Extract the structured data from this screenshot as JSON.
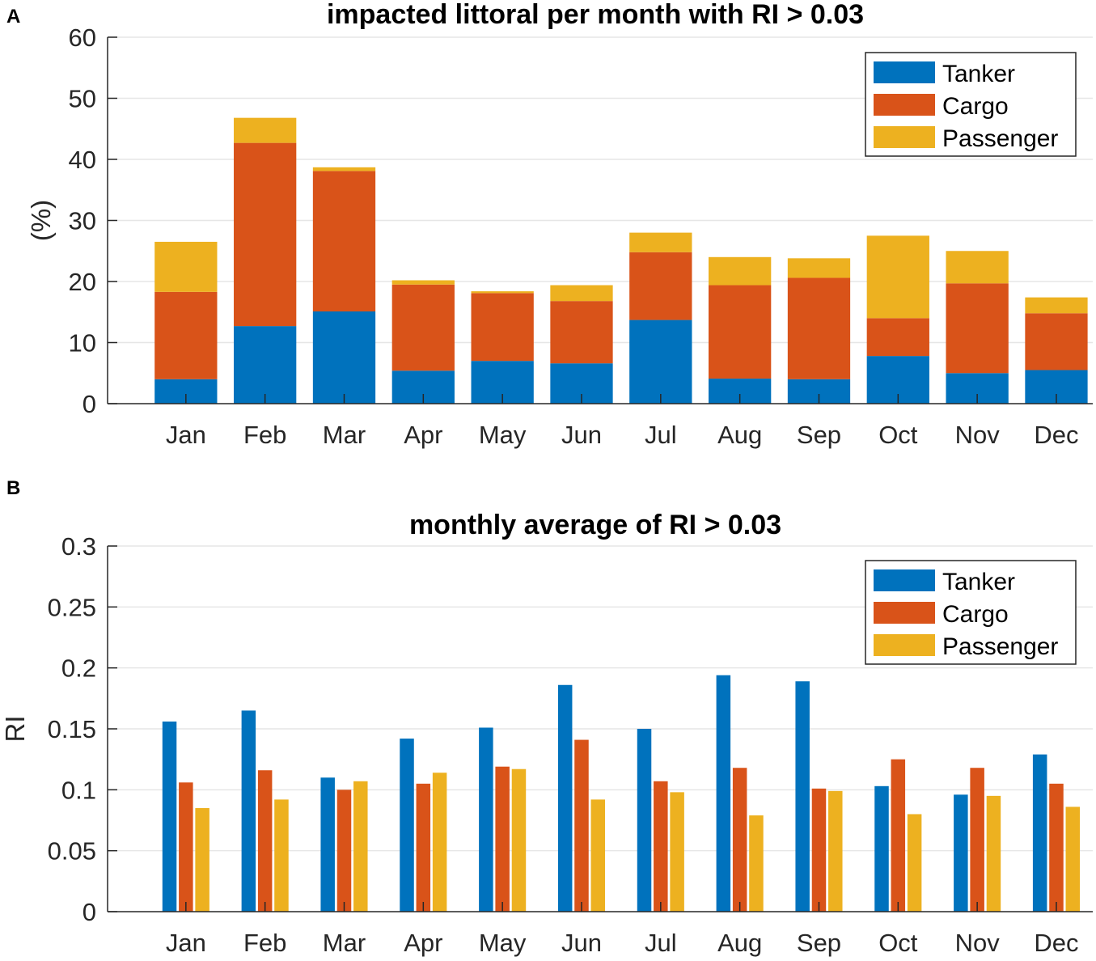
{
  "colors": {
    "tanker": "#0072BD",
    "cargo": "#D95319",
    "passenger": "#EDB120"
  },
  "chart_data": [
    {
      "panel": "A",
      "type": "bar",
      "stacked": true,
      "title": "impacted littoral per month with RI > 0.03",
      "xlabel": "",
      "ylabel": "(%)",
      "ylim": [
        0,
        60
      ],
      "yticks": [
        0,
        10,
        20,
        30,
        40,
        50,
        60
      ],
      "ytick_labels": [
        "0",
        "10",
        "20",
        "30",
        "40",
        "50",
        "60"
      ],
      "grid": true,
      "legend_position": "top-right",
      "categories": [
        "Jan",
        "Feb",
        "Mar",
        "Apr",
        "May",
        "Jun",
        "Jul",
        "Aug",
        "Sep",
        "Oct",
        "Nov",
        "Dec"
      ],
      "series": [
        {
          "name": "Tanker",
          "values": [
            4.0,
            12.7,
            15.1,
            5.4,
            7.0,
            6.6,
            13.7,
            4.1,
            4.0,
            7.8,
            5.0,
            5.5
          ]
        },
        {
          "name": "Cargo",
          "values": [
            14.3,
            30.0,
            23.0,
            14.1,
            11.1,
            10.2,
            11.1,
            15.3,
            16.6,
            6.2,
            14.7,
            9.3
          ]
        },
        {
          "name": "Passenger",
          "values": [
            8.2,
            4.1,
            0.6,
            0.7,
            0.3,
            2.6,
            3.2,
            4.6,
            3.2,
            13.5,
            5.3,
            2.6
          ]
        }
      ]
    },
    {
      "panel": "B",
      "type": "bar",
      "stacked": false,
      "title": "monthly average of RI > 0.03",
      "xlabel": "",
      "ylabel": "RI",
      "ylim": [
        0,
        0.3
      ],
      "yticks": [
        0,
        0.05,
        0.1,
        0.15,
        0.2,
        0.25,
        0.3
      ],
      "ytick_labels": [
        "0",
        "0.05",
        "0.1",
        "0.15",
        "0.2",
        "0.25",
        "0.3"
      ],
      "grid": true,
      "legend_position": "top-right",
      "categories": [
        "Jan",
        "Feb",
        "Mar",
        "Apr",
        "May",
        "Jun",
        "Jul",
        "Aug",
        "Sep",
        "Oct",
        "Nov",
        "Dec"
      ],
      "series": [
        {
          "name": "Tanker",
          "values": [
            0.156,
            0.165,
            0.11,
            0.142,
            0.151,
            0.186,
            0.15,
            0.194,
            0.189,
            0.103,
            0.096,
            0.129
          ]
        },
        {
          "name": "Cargo",
          "values": [
            0.106,
            0.116,
            0.1,
            0.105,
            0.119,
            0.141,
            0.107,
            0.118,
            0.101,
            0.125,
            0.118,
            0.105
          ]
        },
        {
          "name": "Passenger",
          "values": [
            0.085,
            0.092,
            0.107,
            0.114,
            0.117,
            0.092,
            0.098,
            0.079,
            0.099,
            0.08,
            0.095,
            0.086
          ]
        }
      ]
    }
  ]
}
